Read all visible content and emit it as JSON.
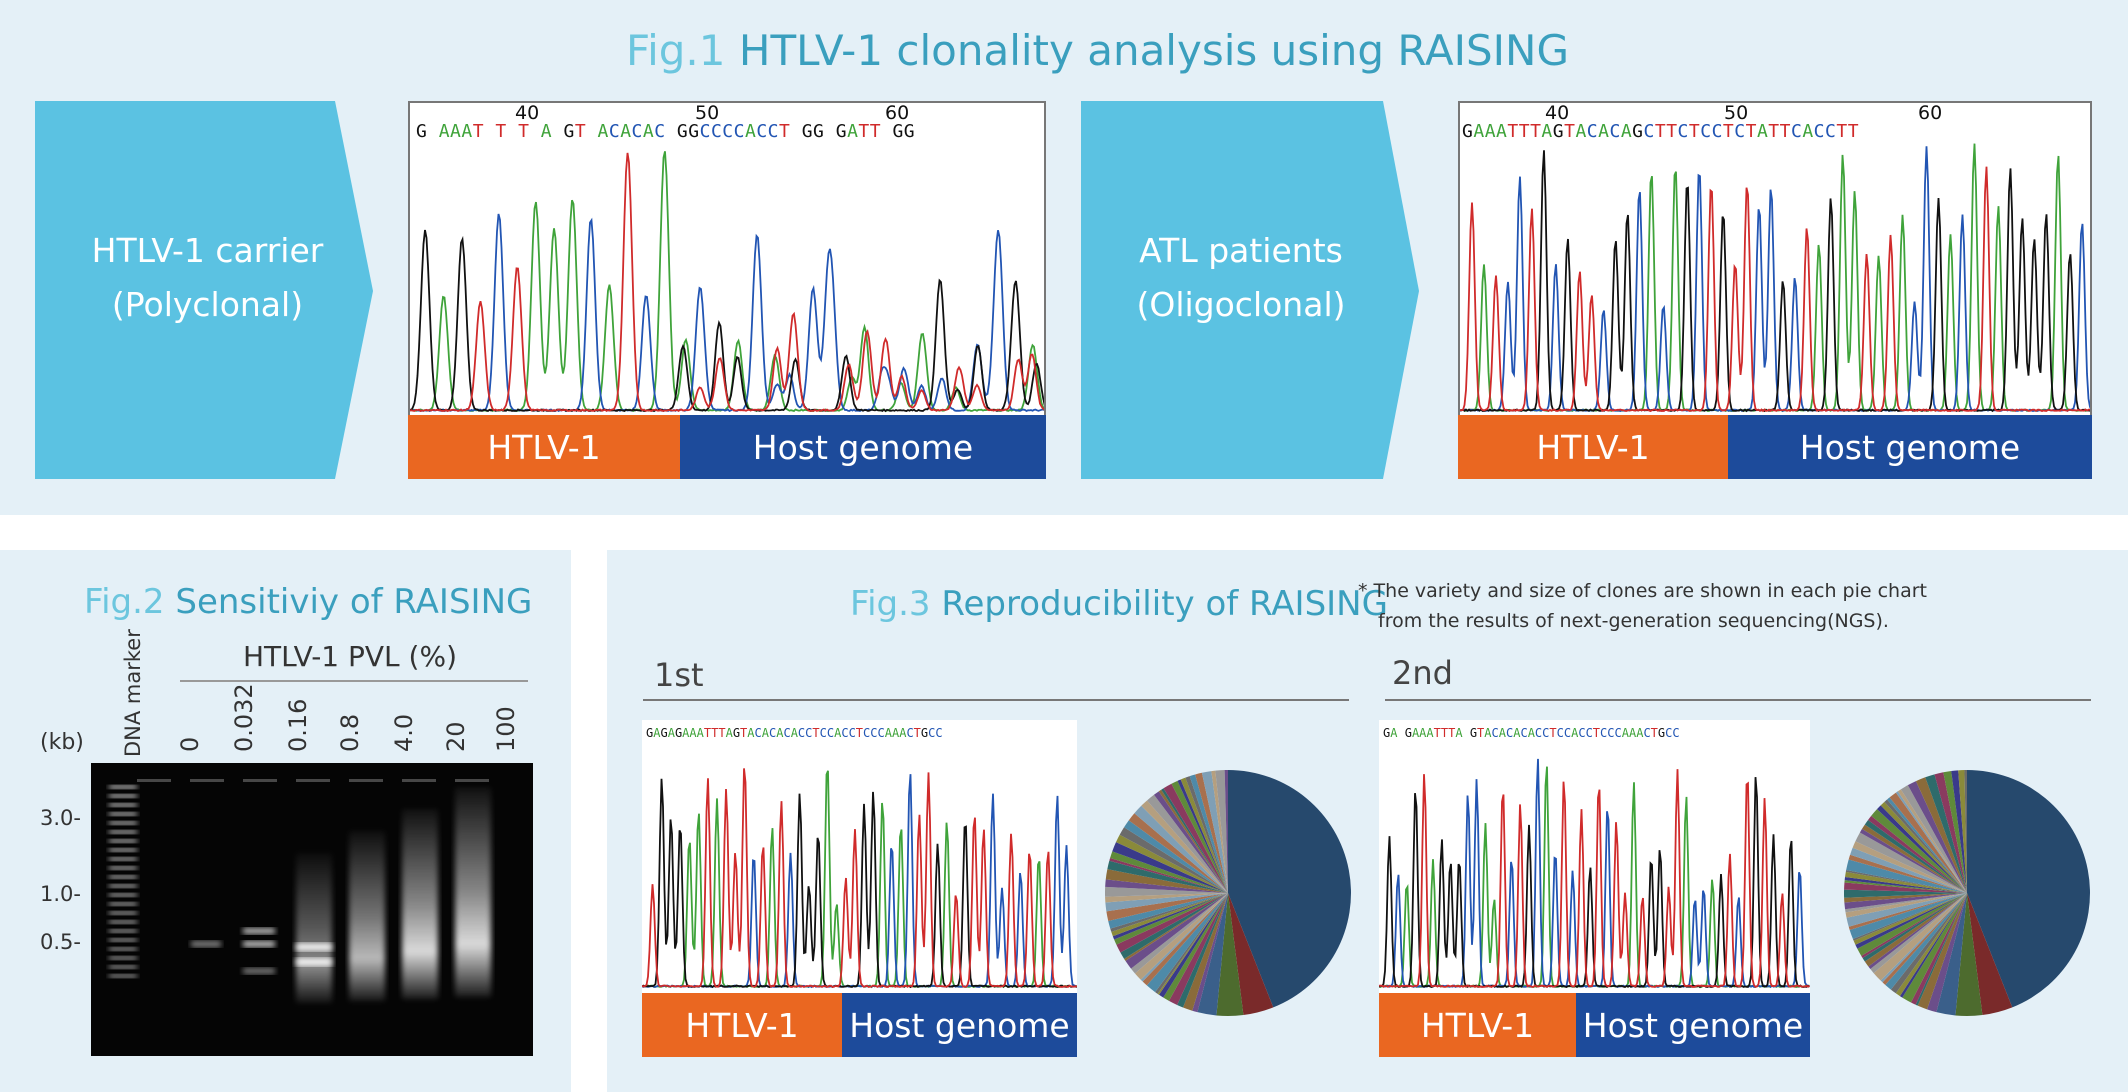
{
  "fig1": {
    "fig_label": "Fig.1",
    "title_rest": " HTLV-1 clonality analysis using RAISING",
    "carrier": {
      "line1": "HTLV-1 carrier",
      "line2": "(Polyclonal)"
    },
    "patient": {
      "line1": "ATL patients",
      "line2": "(Oligoclonal)"
    },
    "chrom1": {
      "ticks": [
        "40",
        "50",
        "60"
      ],
      "sequence": "G AAAT T T A GT ACACAC GGCCCCACCT GG GATT GG",
      "bar_left": "HTLV-1",
      "bar_right": "Host genome"
    },
    "chrom2": {
      "ticks": [
        "40",
        "50",
        "60"
      ],
      "sequence": "GAAATTTAGTACACAGCTTCTCCTCTATTCACCTT",
      "bar_left": "HTLV-1",
      "bar_right": "Host genome"
    }
  },
  "fig2": {
    "fig_label": "Fig.2",
    "title_rest": " Sensitiviy of RAISING",
    "pvl_header": "HTLV-1 PVL (%)",
    "marker_label": "DNA marker",
    "kb_label": "(kb)",
    "lanes": [
      "0",
      "0.032",
      "0.16",
      "0.8",
      "4.0",
      "20",
      "100"
    ],
    "y_ticks": [
      "3.0-",
      "1.0-",
      "0.5-"
    ]
  },
  "fig3": {
    "fig_label": "Fig.3",
    "title_rest": " Reproducibility of RAISING",
    "note_line1": "* The variety and size of clones are shown in each pie chart",
    "note_line2": "from the results of next-generation sequencing(NGS).",
    "run1": {
      "label": "1st",
      "sequence": "GAGAGAAATTTAGTACACACACCTCCACCTCCCAAACTGCC",
      "bar_left": "HTLV-1",
      "bar_right": "Host genome"
    },
    "run2": {
      "label": "2nd",
      "sequence": "GA GAAATTTA GTACACACACCTCCACCTCCCAAACTGCC",
      "bar_left": "HTLV-1",
      "bar_right": "Host genome"
    }
  },
  "colors": {
    "panel_bg": "#e4f0f7",
    "arrow": "#5bc2e2",
    "title": "#3a9fbe",
    "htlv_bar": "#ea6721",
    "host_bar": "#1d4b9b",
    "base_A": "#3fa33a",
    "base_C": "#2255b3",
    "base_G": "#111111",
    "base_T": "#d02b2b",
    "pie_major": "#26496d"
  }
}
